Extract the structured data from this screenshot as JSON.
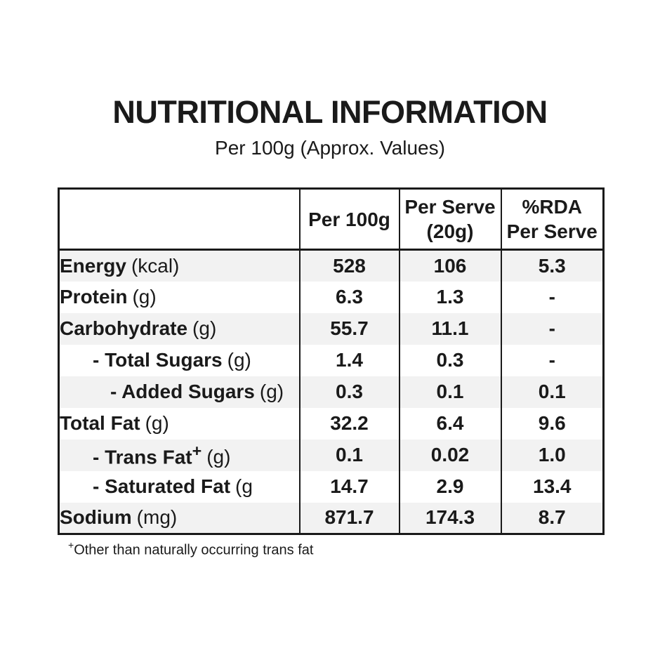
{
  "page": {
    "title": "NUTRITIONAL INFORMATION",
    "subtitle": "Per 100g (Approx. Values)",
    "footnote_sup": "+",
    "footnote_text": "Other than naturally occurring trans fat"
  },
  "colors": {
    "text": "#1a1a1a",
    "border": "#1a1a1a",
    "row_alt_bg": "#f2f2f2",
    "background": "#ffffff"
  },
  "table": {
    "header": [
      {
        "lines": [
          ""
        ]
      },
      {
        "lines": [
          "Per 100g"
        ]
      },
      {
        "lines": [
          "Per Serve",
          "(20g)"
        ]
      },
      {
        "lines": [
          "%RDA",
          "Per Serve"
        ]
      }
    ],
    "rows": [
      {
        "label": "Energy",
        "sup": "",
        "unit": "(kcal)",
        "indent": 0,
        "per_100g": "528",
        "per_serve": "106",
        "rda_per_serve": "5.3"
      },
      {
        "label": "Protein",
        "sup": "",
        "unit": "(g)",
        "indent": 0,
        "per_100g": "6.3",
        "per_serve": "1.3",
        "rda_per_serve": "-"
      },
      {
        "label": "Carbohydrate",
        "sup": "",
        "unit": "(g)",
        "indent": 0,
        "per_100g": "55.7",
        "per_serve": "11.1",
        "rda_per_serve": "-"
      },
      {
        "label": "- Total Sugars",
        "sup": "",
        "unit": "(g)",
        "indent": 1,
        "per_100g": "1.4",
        "per_serve": "0.3",
        "rda_per_serve": "-"
      },
      {
        "label": "- Added Sugars",
        "sup": "",
        "unit": "(g)",
        "indent": 2,
        "per_100g": "0.3",
        "per_serve": "0.1",
        "rda_per_serve": "0.1"
      },
      {
        "label": "Total Fat",
        "sup": "",
        "unit": "(g)",
        "indent": 0,
        "per_100g": "32.2",
        "per_serve": "6.4",
        "rda_per_serve": "9.6"
      },
      {
        "label": "- Trans Fat",
        "sup": "+",
        "unit": "(g)",
        "indent": 1,
        "per_100g": "0.1",
        "per_serve": "0.02",
        "rda_per_serve": "1.0"
      },
      {
        "label": "- Saturated Fat",
        "sup": "",
        "unit": "(g",
        "indent": 1,
        "per_100g": "14.7",
        "per_serve": "2.9",
        "rda_per_serve": "13.4"
      },
      {
        "label": "Sodium",
        "sup": "",
        "unit": "(mg)",
        "indent": 0,
        "per_100g": "871.7",
        "per_serve": "174.3",
        "rda_per_serve": "8.7"
      }
    ]
  }
}
